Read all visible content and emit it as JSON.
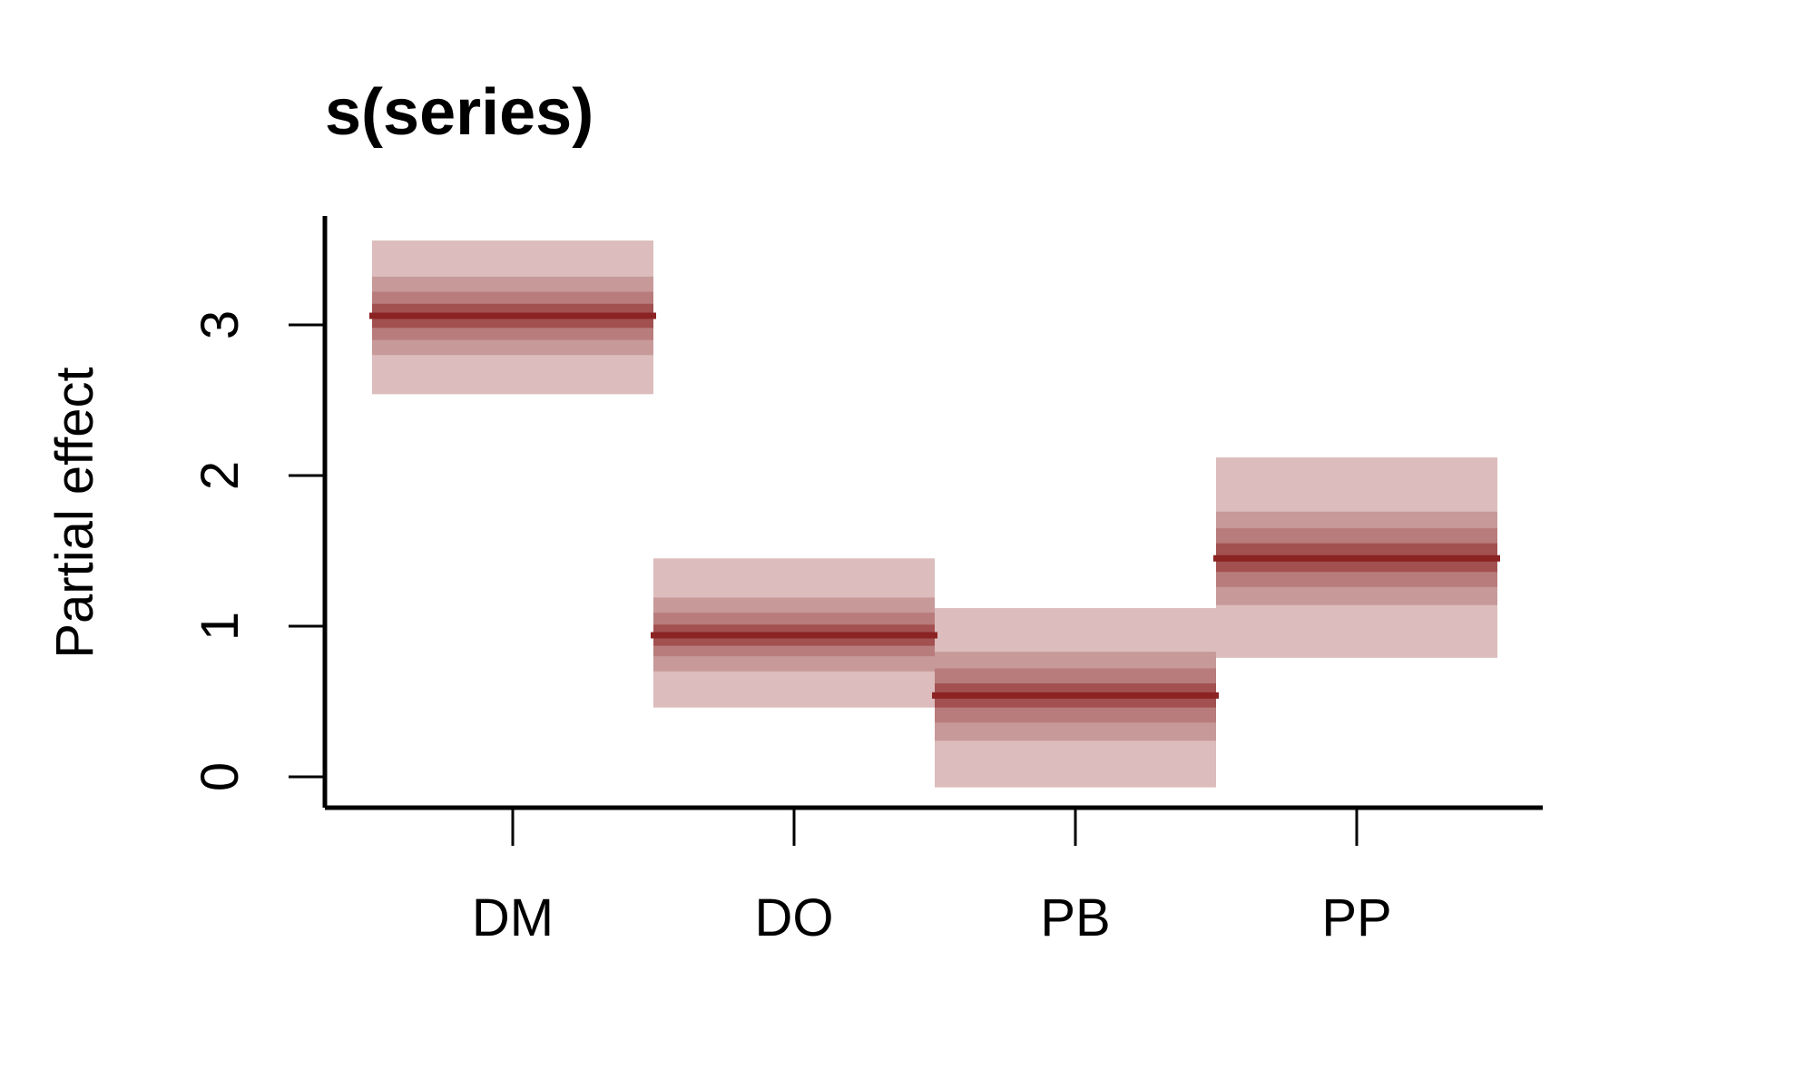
{
  "chart_data": {
    "type": "box",
    "title": "s(series)",
    "xlabel": "",
    "ylabel": "Partial effect",
    "categories": [
      "DM",
      "DO",
      "PB",
      "PP"
    ],
    "y_ticks": [
      0,
      1,
      2,
      3
    ],
    "ylim": [
      -0.2,
      3.7
    ],
    "series": [
      {
        "values": [
          3.06,
          0.94,
          0.54,
          1.45
        ],
        "intervals": [
          [
            [
              2.54,
              3.56
            ],
            [
              2.8,
              3.32
            ],
            [
              2.9,
              3.22
            ],
            [
              2.98,
              3.14
            ]
          ],
          [
            [
              0.46,
              1.45
            ],
            [
              0.7,
              1.19
            ],
            [
              0.8,
              1.09
            ],
            [
              0.87,
              1.01
            ]
          ],
          [
            [
              -0.07,
              1.12
            ],
            [
              0.24,
              0.83
            ],
            [
              0.36,
              0.72
            ],
            [
              0.46,
              0.62
            ]
          ],
          [
            [
              0.79,
              2.12
            ],
            [
              1.14,
              1.76
            ],
            [
              1.26,
              1.65
            ],
            [
              1.36,
              1.55
            ]
          ]
        ]
      }
    ],
    "colors": {
      "median": "#8b2323",
      "band_levels": [
        "#dcbcbc",
        "#c79999",
        "#b97c7c",
        "#a25050"
      ],
      "axis": "#000000"
    }
  }
}
